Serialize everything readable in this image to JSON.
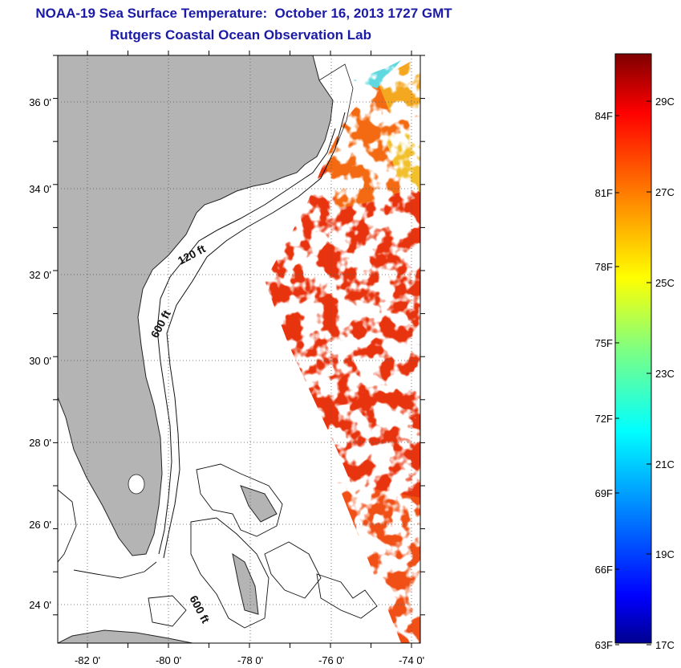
{
  "header": {
    "title": "NOAA-19 Sea Surface Temperature:  October 16, 2013 1727 GMT",
    "subtitle": "Rutgers Coastal Ocean Observation Lab"
  },
  "map": {
    "lat_labels": [
      "36 0'",
      "34 0'",
      "32 0'",
      "30 0'",
      "28 0'",
      "26 0'",
      "24 0'"
    ],
    "lon_labels": [
      "-82 0'",
      "-80 0'",
      "-78 0'",
      "-76 0'",
      "-74 0'"
    ],
    "contour_labels": [
      "120 ft",
      "600 ft",
      "600 ft"
    ],
    "land_color": "#b4b4b4"
  },
  "colorbar": {
    "f_labels": [
      "84F",
      "81F",
      "78F",
      "75F",
      "72F",
      "69F",
      "66F",
      "63F"
    ],
    "c_labels": [
      "29C",
      "27C",
      "25C",
      "23C",
      "21C",
      "19C",
      "17C"
    ],
    "colors": [
      "#7f0000",
      "#ff0000",
      "#ff8000",
      "#ffff00",
      "#80ff80",
      "#00ffff",
      "#0080ff",
      "#0000ff",
      "#00008f"
    ]
  }
}
